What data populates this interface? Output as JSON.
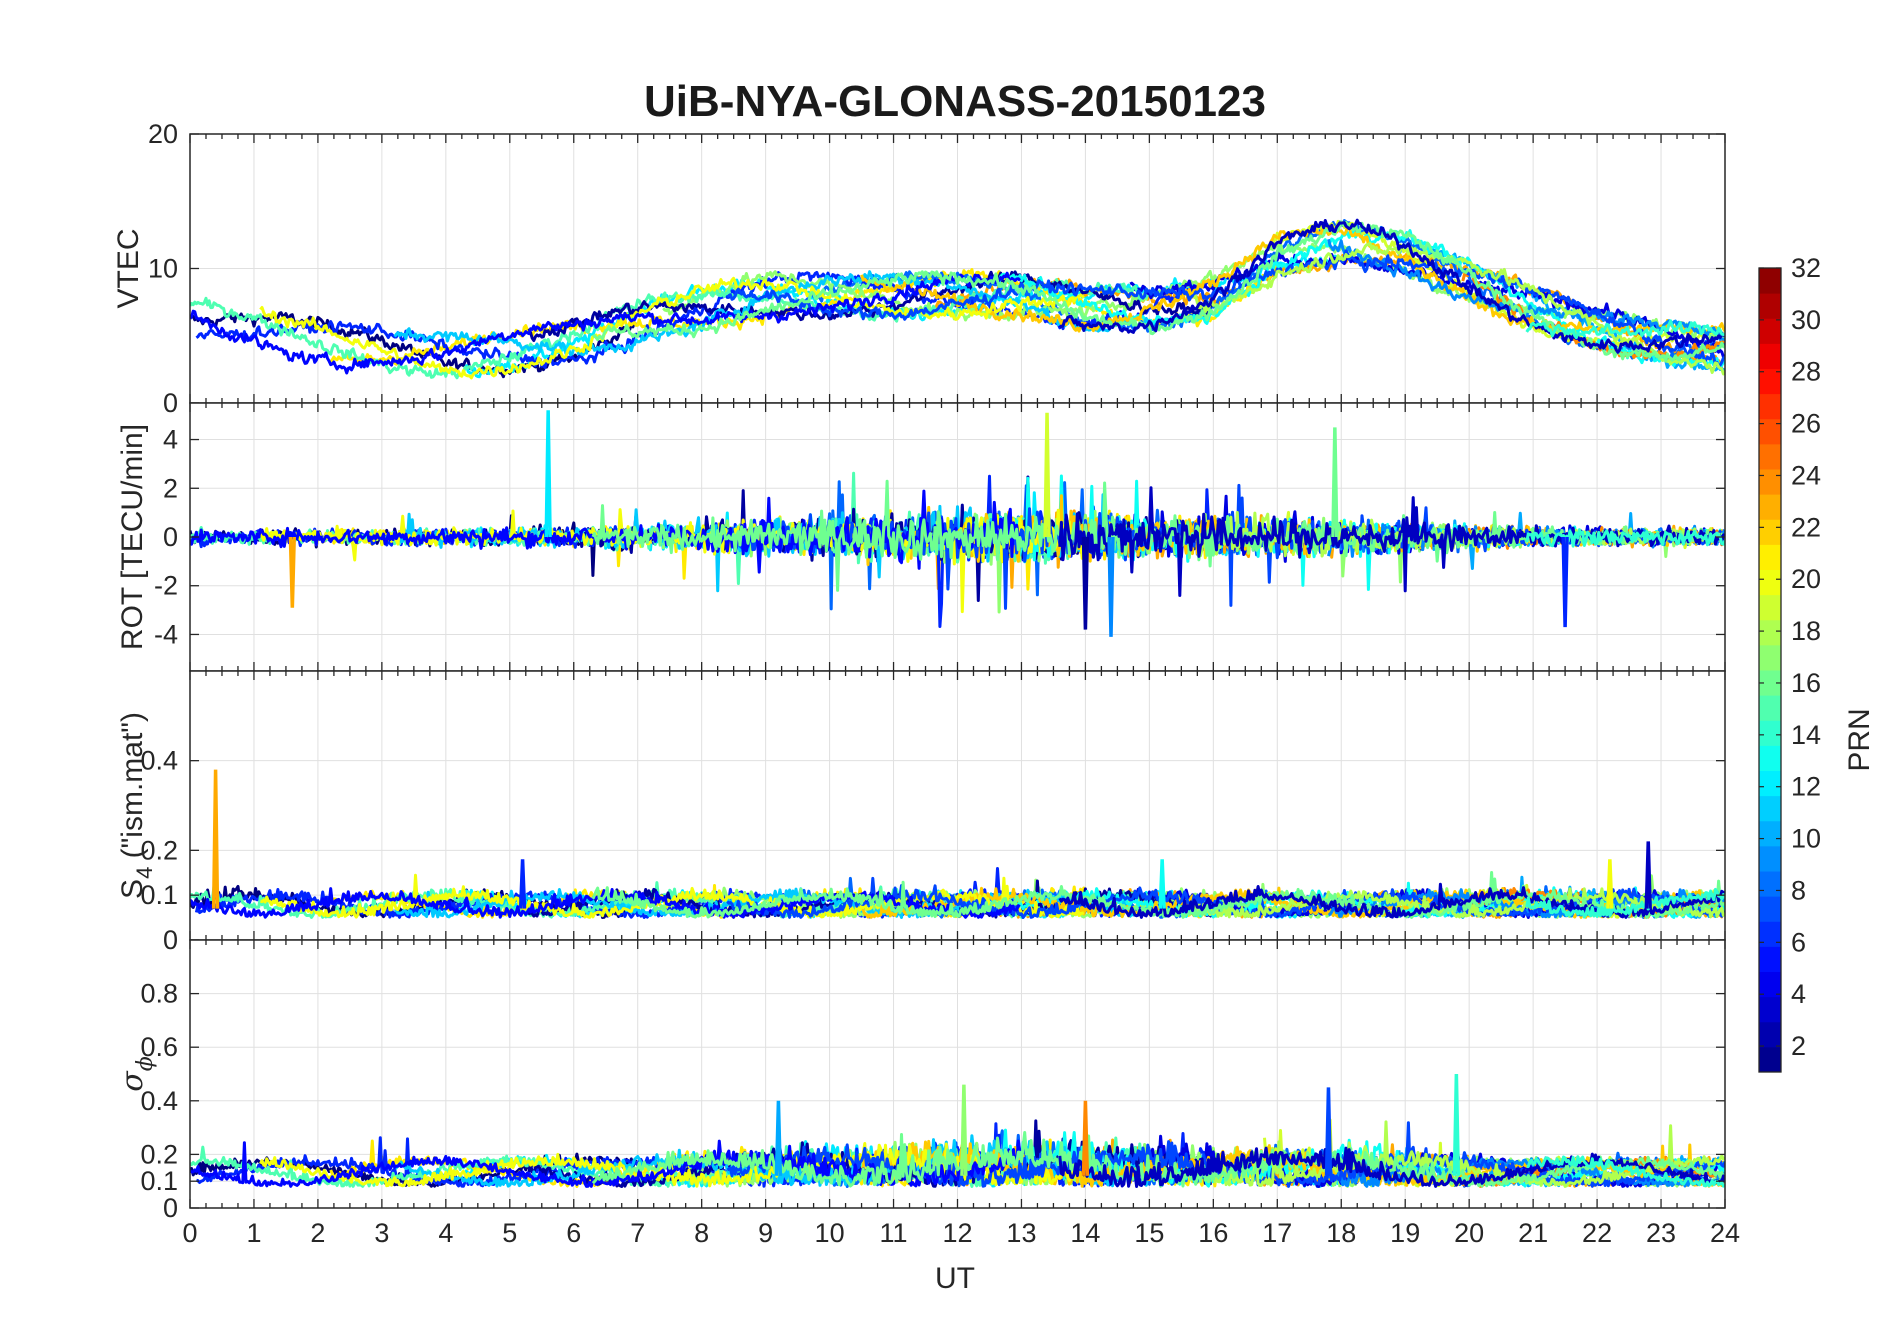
{
  "chart_data": {
    "type": "line",
    "title": "UiB-NYA-GLONASS-20150123",
    "xlabel": "UT",
    "xlim": [
      0,
      24
    ],
    "xticks": [
      "0",
      "1",
      "2",
      "3",
      "4",
      "5",
      "6",
      "7",
      "8",
      "9",
      "10",
      "11",
      "12",
      "13",
      "14",
      "15",
      "16",
      "17",
      "18",
      "19",
      "20",
      "21",
      "22",
      "23",
      "24"
    ],
    "grid": true,
    "series_count": 24,
    "panels": [
      {
        "id": "vtec",
        "ylabel": "VTEC",
        "ylim": [
          0,
          20
        ],
        "yticks": [
          0,
          10,
          20
        ],
        "ytick_labels": [
          "0",
          "10",
          "20"
        ],
        "series_sketch": {
          "description": "smoothed VTEC traces per GLONASS PRN",
          "x": [
            0,
            2,
            4,
            6,
            7,
            8,
            9,
            10,
            11,
            12,
            13,
            14,
            15,
            16,
            17,
            18,
            19,
            20,
            21,
            22,
            23,
            24
          ],
          "y": [
            6,
            4.5,
            3.5,
            4.5,
            6,
            7,
            8,
            8,
            8,
            8,
            8,
            7,
            7,
            8,
            11,
            12,
            11,
            9,
            7,
            5.5,
            4.5,
            4
          ]
        }
      },
      {
        "id": "rot",
        "ylabel": "ROT [TECU/min]",
        "ylim": [
          -5.5,
          5.5
        ],
        "yticks": [
          -4,
          -2,
          0,
          2,
          4
        ],
        "ytick_labels": [
          "-4",
          "-2",
          "0",
          "2",
          "4"
        ],
        "spikes": [
          {
            "x": 5.6,
            "y": 5.2
          },
          {
            "x": 13.4,
            "y": 5.1
          },
          {
            "x": 14.0,
            "y": -3.8
          },
          {
            "x": 14.4,
            "y": -4.1
          },
          {
            "x": 17.9,
            "y": 4.5
          },
          {
            "x": 1.6,
            "y": -2.9
          },
          {
            "x": 21.5,
            "y": -3.7
          }
        ]
      },
      {
        "id": "s4",
        "ylabel_main": "S",
        "ylabel_sub": "4",
        "ylabel_tail": " (\"ism.mat\")",
        "ylim": [
          0,
          0.6
        ],
        "yticks": [
          0,
          0.1,
          0.2,
          0.4
        ],
        "ytick_labels": [
          "0",
          "0.1",
          "0.2",
          "0.4"
        ],
        "spikes": [
          {
            "x": 0.4,
            "y": 0.38
          },
          {
            "x": 5.2,
            "y": 0.18
          },
          {
            "x": 15.2,
            "y": 0.18
          },
          {
            "x": 22.2,
            "y": 0.18
          },
          {
            "x": 22.8,
            "y": 0.22
          }
        ]
      },
      {
        "id": "sigma_phi",
        "ylabel_main": "σ",
        "ylabel_sub": "ϕ",
        "ylim": [
          0,
          1
        ],
        "yticks": [
          0,
          0.1,
          0.2,
          0.4,
          0.6,
          0.8
        ],
        "ytick_labels": [
          "0",
          "0.1",
          "0.2",
          "0.4",
          "0.6",
          "0.8"
        ],
        "spikes": [
          {
            "x": 9.2,
            "y": 0.4
          },
          {
            "x": 12.1,
            "y": 0.46
          },
          {
            "x": 14.0,
            "y": 0.4
          },
          {
            "x": 17.8,
            "y": 0.45
          },
          {
            "x": 19.8,
            "y": 0.5
          }
        ]
      }
    ],
    "colorbar": {
      "label": "PRN",
      "colormap": "jet",
      "range": [
        1,
        32
      ],
      "ticks": [
        2,
        4,
        6,
        8,
        10,
        12,
        14,
        16,
        18,
        20,
        22,
        24,
        26,
        28,
        30,
        32
      ],
      "tick_labels": [
        "2",
        "4",
        "6",
        "8",
        "10",
        "12",
        "14",
        "16",
        "18",
        "20",
        "22",
        "24",
        "26",
        "28",
        "30",
        "32"
      ],
      "levels": 32
    },
    "colors": {
      "axis": "#262626",
      "grid": "#e0e0e0"
    }
  }
}
